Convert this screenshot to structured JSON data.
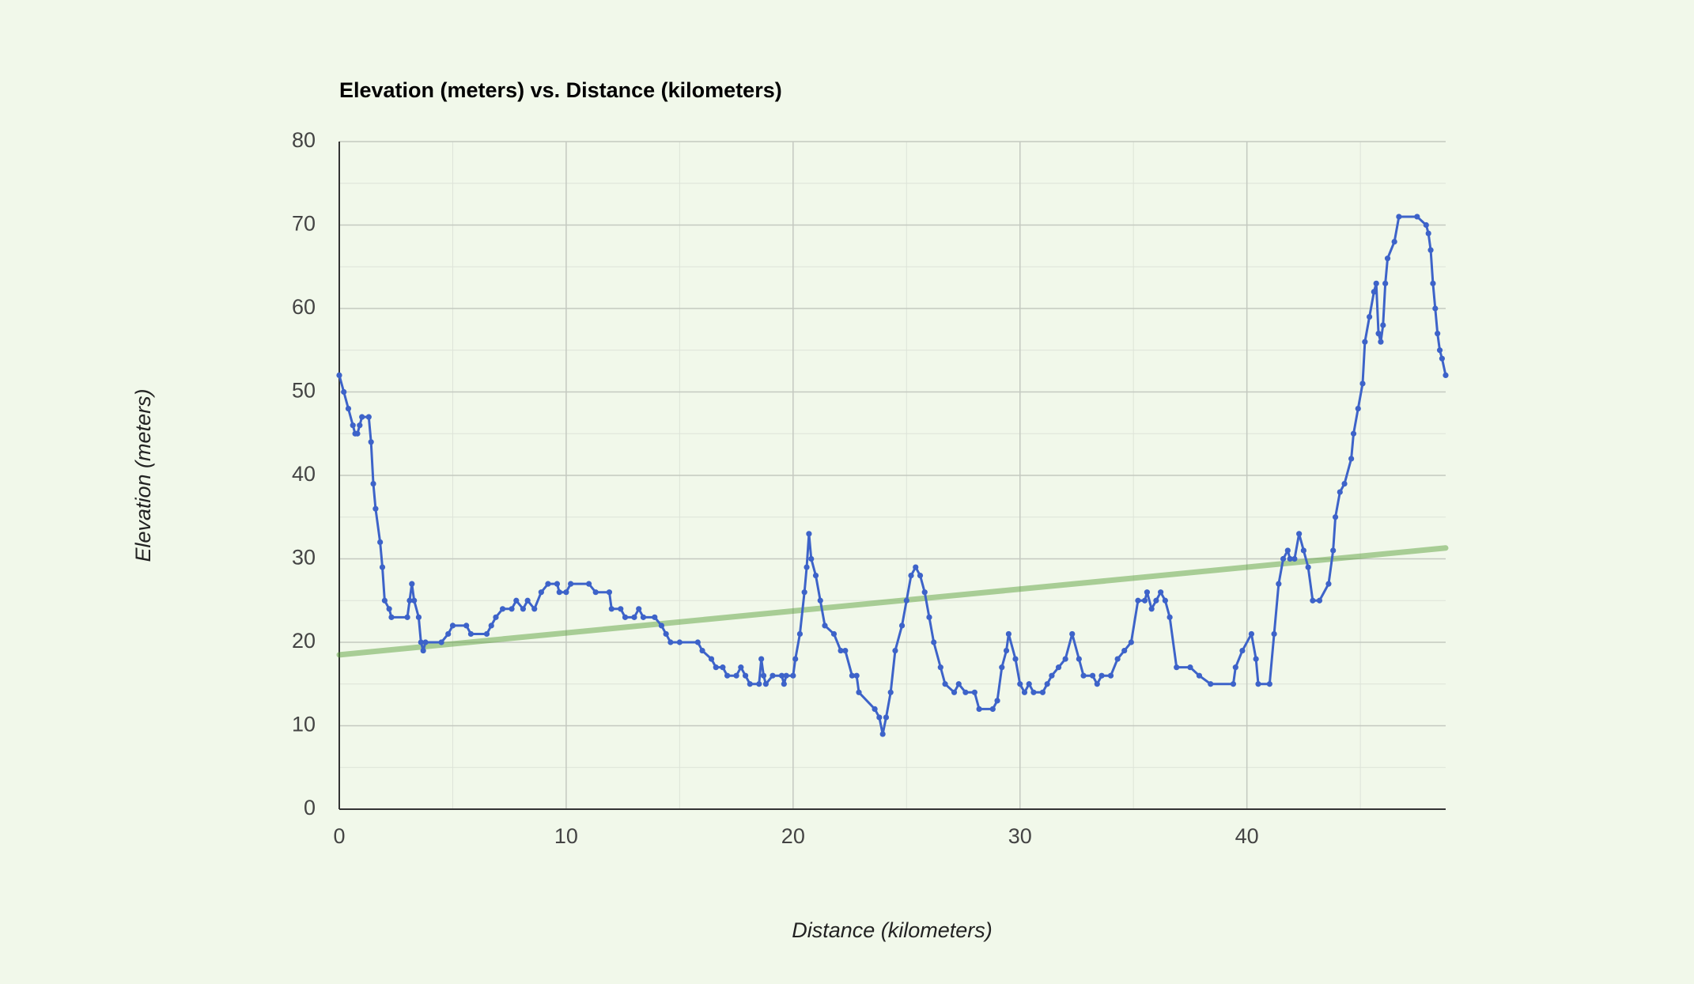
{
  "chart_data": {
    "type": "line",
    "title": "Elevation (meters) vs. Distance (kilometers)",
    "x_label": "Distance (kilometers)",
    "y_label": "Elevation (meters)",
    "xlim": [
      0,
      48.76
    ],
    "ylim": [
      0,
      80
    ],
    "xticks": [
      0,
      10,
      20,
      30,
      40
    ],
    "yticks": [
      0,
      10,
      20,
      30,
      40,
      50,
      60,
      70,
      80
    ],
    "grid": true,
    "minor_grid": true,
    "series": [
      {
        "color": "#3d63c9",
        "markers": true,
        "x": [
          0,
          0.2,
          0.4,
          0.6,
          0.7,
          0.8,
          0.9,
          1.0,
          1.3,
          1.4,
          1.5,
          1.6,
          1.8,
          1.9,
          2.0,
          2.2,
          2.3,
          3.0,
          3.1,
          3.2,
          3.3,
          3.5,
          3.6,
          3.7,
          3.8,
          4.5,
          4.8,
          5.0,
          5.6,
          5.8,
          6.5,
          6.7,
          6.9,
          7.2,
          7.6,
          7.8,
          8.1,
          8.3,
          8.6,
          8.9,
          9.2,
          9.6,
          9.7,
          10.0,
          10.2,
          11.0,
          11.3,
          11.9,
          12.0,
          12.4,
          12.6,
          13.0,
          13.2,
          13.4,
          13.9,
          14.2,
          14.4,
          14.6,
          15.0,
          15.8,
          16.0,
          16.4,
          16.6,
          16.9,
          17.1,
          17.5,
          17.7,
          17.9,
          18.1,
          18.5,
          18.6,
          18.7,
          18.8,
          19.1,
          19.5,
          19.6,
          19.7,
          20.0,
          20.1,
          20.3,
          20.5,
          20.6,
          20.7,
          20.8,
          21.0,
          21.2,
          21.4,
          21.8,
          22.1,
          22.3,
          22.6,
          22.8,
          22.9,
          23.6,
          23.8,
          23.95,
          24.1,
          24.3,
          24.5,
          24.8,
          25.0,
          25.2,
          25.4,
          25.6,
          25.8,
          26.0,
          26.2,
          26.5,
          26.7,
          27.1,
          27.3,
          27.6,
          28.0,
          28.2,
          28.8,
          29.0,
          29.2,
          29.4,
          29.5,
          29.8,
          30.0,
          30.2,
          30.4,
          30.6,
          31.0,
          31.2,
          31.4,
          31.7,
          32.0,
          32.3,
          32.6,
          32.8,
          33.2,
          33.4,
          33.6,
          34.0,
          34.3,
          34.6,
          34.9,
          35.2,
          35.5,
          35.6,
          35.8,
          36.0,
          36.2,
          36.4,
          36.6,
          36.9,
          37.5,
          37.9,
          38.4,
          39.4,
          39.5,
          39.8,
          40.2,
          40.4,
          40.5,
          41.0,
          41.2,
          41.4,
          41.6,
          41.8,
          41.9,
          42.1,
          42.3,
          42.5,
          42.7,
          42.9,
          43.2,
          43.6,
          43.8,
          43.9,
          44.1,
          44.3,
          44.6,
          44.7,
          44.9,
          45.1,
          45.2,
          45.4,
          45.6,
          45.7,
          45.8,
          45.9,
          46.0,
          46.1,
          46.2,
          46.5,
          46.7,
          47.5,
          47.9,
          48.0,
          48.1,
          48.2,
          48.3,
          48.4,
          48.5,
          48.6,
          48.76
        ],
        "values": [
          52,
          50,
          48,
          46,
          45,
          45,
          46,
          47,
          47,
          44,
          39,
          36,
          32,
          29,
          25,
          24,
          23,
          23,
          25,
          27,
          25,
          23,
          20,
          19,
          20,
          20,
          21,
          22,
          22,
          21,
          21,
          22,
          23,
          24,
          24,
          25,
          24,
          25,
          24,
          26,
          27,
          27,
          26,
          26,
          27,
          27,
          26,
          26,
          24,
          24,
          23,
          23,
          24,
          23,
          23,
          22,
          21,
          20,
          20,
          20,
          19,
          18,
          17,
          17,
          16,
          16,
          17,
          16,
          15,
          15,
          18,
          16,
          15,
          16,
          16,
          15,
          16,
          16,
          18,
          21,
          26,
          29,
          33,
          30,
          28,
          25,
          22,
          21,
          19,
          19,
          16,
          16,
          14,
          12,
          11,
          9,
          11,
          14,
          19,
          22,
          25,
          28,
          29,
          28,
          26,
          23,
          20,
          17,
          15,
          14,
          15,
          14,
          14,
          12,
          12,
          13,
          17,
          19,
          21,
          18,
          15,
          14,
          15,
          14,
          14,
          15,
          16,
          17,
          18,
          21,
          18,
          16,
          16,
          15,
          16,
          16,
          18,
          19,
          20,
          25,
          25,
          26,
          24,
          25,
          26,
          25,
          23,
          17,
          17,
          16,
          15,
          15,
          17,
          19,
          21,
          18,
          15,
          15,
          21,
          27,
          30,
          31,
          30,
          30,
          33,
          31,
          29,
          25,
          25,
          27,
          31,
          35,
          38,
          39,
          42,
          45,
          48,
          51,
          56,
          59,
          62,
          63,
          57,
          56,
          58,
          63,
          66,
          68,
          71,
          71,
          70,
          69,
          67,
          63,
          60,
          57,
          55,
          54,
          52
        ]
      },
      {
        "color": "#4f9a2f",
        "markers": false,
        "x": [
          0,
          48.76
        ],
        "values": [
          18.5,
          31.3
        ]
      }
    ]
  }
}
